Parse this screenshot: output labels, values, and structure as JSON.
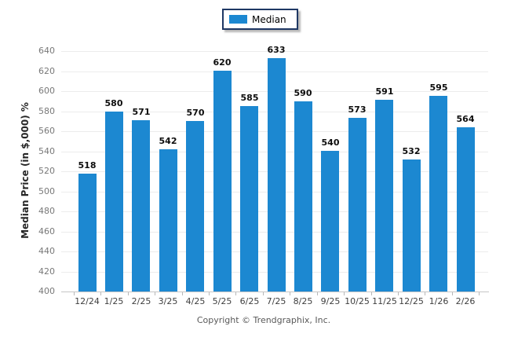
{
  "legend": {
    "label": "Median",
    "swatch_color": "#1c88d1"
  },
  "chart_data": {
    "type": "bar",
    "title": "",
    "xlabel": "",
    "ylabel": "Median Price (in $,000) %",
    "categories": [
      "12/24",
      "1/25",
      "2/25",
      "3/25",
      "4/25",
      "5/25",
      "6/25",
      "7/25",
      "8/25",
      "9/25",
      "10/25",
      "11/25",
      "12/25",
      "1/26",
      "2/26"
    ],
    "series": [
      {
        "name": "Median",
        "values": [
          518,
          580,
          571,
          542,
          570,
          620,
          585,
          633,
          590,
          540,
          573,
          591,
          532,
          595,
          564
        ]
      }
    ],
    "ylim": [
      400,
      640
    ],
    "ytick_step": 20,
    "grid": true,
    "legend_position": "top-center",
    "bar_color": "#1c88d1",
    "data_labels": true
  },
  "footer": {
    "copyright": "Copyright © Trendgraphix, Inc."
  }
}
